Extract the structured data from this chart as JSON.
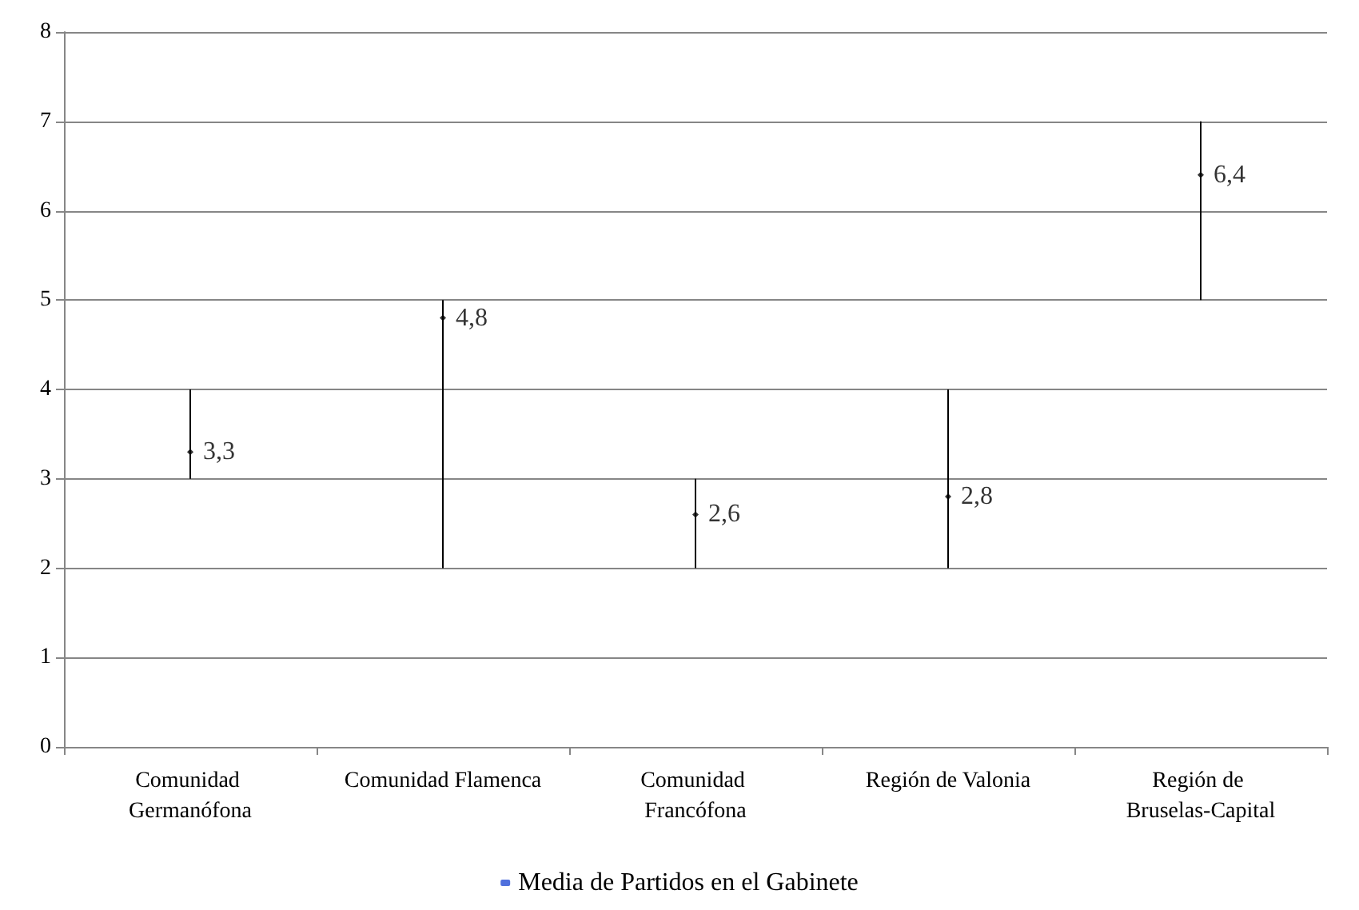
{
  "chart_data": {
    "type": "scatter",
    "categories": [
      "Comunidad Germanófona",
      "Comunidad Flamenca",
      "Comunidad Francófona",
      "Región de Valonia",
      "Región de Bruselas-Capital"
    ],
    "series": [
      {
        "name": "Media de Partidos en el Gabinete",
        "color": "#000000",
        "values": [
          3.3,
          4.8,
          2.6,
          2.8,
          6.4
        ],
        "errors": [
          [
            3,
            4
          ],
          [
            2,
            5
          ],
          [
            2,
            3
          ],
          [
            2,
            4
          ],
          [
            5,
            7
          ]
        ]
      }
    ],
    "value_labels": [
      "3,3",
      "4,8",
      "2,6",
      "2,8",
      "6,4"
    ],
    "ylim": [
      0,
      8
    ],
    "yticks": [
      0,
      1,
      2,
      3,
      4,
      5,
      6,
      7,
      8
    ],
    "grid": "y",
    "legend": "bottom",
    "marker": "diamond"
  }
}
